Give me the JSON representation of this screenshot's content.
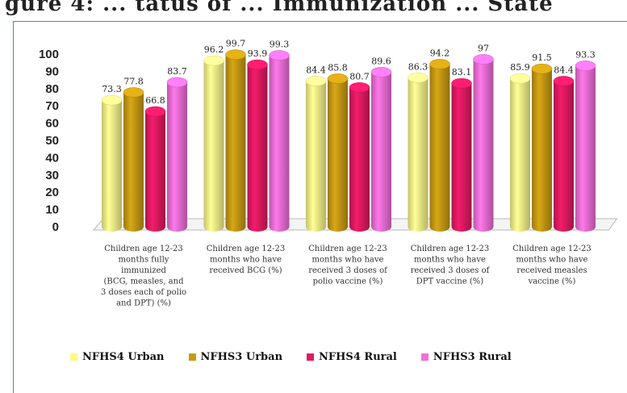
{
  "header_fragment": "gure 4: ... tatus of ... Immunization ... State",
  "chart_data": {
    "type": "bar",
    "title": "",
    "xlabel": "",
    "ylabel": "",
    "ylim": [
      0,
      100
    ],
    "yticks": [
      0,
      10,
      20,
      30,
      40,
      50,
      60,
      70,
      80,
      90,
      100
    ],
    "grid": false,
    "legend_position": "bottom",
    "categories": [
      [
        "Children age 12-23",
        "months fully",
        "immunized",
        "(BCG, measles, and",
        "3 doses each of polio",
        "and DPT) (%)"
      ],
      [
        "Children age 12-23",
        "months who have",
        "received BCG (%)"
      ],
      [
        "Children age 12-23",
        "months who have",
        "received 3 doses of",
        "polio vaccine (%)"
      ],
      [
        "Children age 12-23",
        "months who have",
        "received 3 doses of",
        "DPT vaccine (%)"
      ],
      [
        "Children age 12-23",
        "months who have",
        "received measles",
        "vaccine (%)"
      ]
    ],
    "series": [
      {
        "name": "NFHS4 Urban",
        "color": "#fbf98a",
        "values": [
          73.3,
          96.2,
          84.4,
          86.3,
          85.9
        ]
      },
      {
        "name": "NFHS3 Urban",
        "color": "#c89b13",
        "values": [
          77.8,
          99.7,
          85.8,
          94.2,
          91.5
        ]
      },
      {
        "name": "NFHS4 Rural",
        "color": "#e31a63",
        "values": [
          66.8,
          93.9,
          80.7,
          83.1,
          84.4
        ]
      },
      {
        "name": "NFHS3 Rural",
        "color": "#f06fd9",
        "values": [
          83.7,
          99.3,
          89.6,
          97,
          93.3
        ]
      }
    ],
    "value_labels": [
      [
        "73.3",
        "77.8",
        "66.8",
        "83.7"
      ],
      [
        "96.2",
        "99.7",
        "93.9",
        "99.3"
      ],
      [
        "84.4",
        "85.8",
        "80.7",
        "89.6"
      ],
      [
        "86.3",
        "94.2",
        "83.1",
        "97"
      ],
      [
        "85.9",
        "91.5",
        "84.4",
        "93.3"
      ]
    ]
  }
}
